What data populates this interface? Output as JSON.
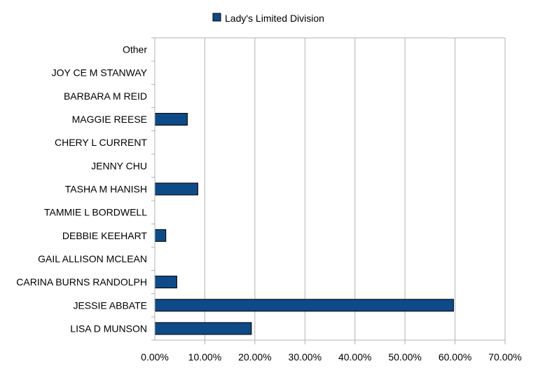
{
  "chart_data": {
    "type": "bar",
    "orientation": "horizontal",
    "categories": [
      "Other",
      "JOY CE M STANWAY",
      "BARBARA M REID",
      "MAGGIE REESE",
      "CHERY L CURRENT",
      "JENNY  CHU",
      "TASHA M HANISH",
      "TAMMIE L BORDWELL",
      "DEBBIE KEEHART",
      "GAIL ALLISON MCLEAN",
      "CARINA BURNS RANDOLPH",
      "JESSIE ABBATE",
      "LISA D MUNSON"
    ],
    "series": [
      {
        "name": "Lady's Limited Division",
        "color": "#0e4a87",
        "values": [
          0,
          0,
          0,
          6.5,
          0,
          0,
          8.6,
          0,
          2.2,
          0,
          4.4,
          59.7,
          19.3
        ]
      }
    ],
    "xlim": [
      0,
      70
    ],
    "xticks": [
      "0.00%",
      "10.00%",
      "20.00%",
      "30.00%",
      "40.00%",
      "50.00%",
      "60.00%",
      "70.00%"
    ],
    "xlabel": "",
    "ylabel": "",
    "grid": true,
    "legend": "top-center",
    "colors": {
      "bar": "#0e4a87",
      "bar_outline": "#000000",
      "grid": "#b3b3b3"
    }
  }
}
